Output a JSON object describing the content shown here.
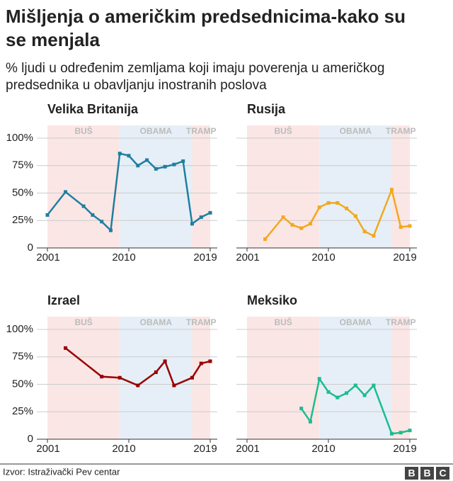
{
  "title_lines": [
    "Mišljenja o američkim predsednicima-kako su",
    "se menjala"
  ],
  "subtitle_lines": [
    "% ljudi u određenim zemljama koji imaju poverenja u američkog",
    "predsednika u obavljanju inostranih poslova"
  ],
  "source": "Izvor: Istraživački Pev centar",
  "logo": [
    "B",
    "B",
    "C"
  ],
  "chart_data": [
    {
      "type": "line",
      "title": "Velika Britanija",
      "x": [
        2001,
        2003,
        2005,
        2006,
        2007,
        2008,
        2009,
        2010,
        2011,
        2012,
        2013,
        2014,
        2015,
        2016,
        2017,
        2018,
        2019
      ],
      "series": [
        {
          "name": "Velika Britanija",
          "color": "#1f7fa0",
          "values": [
            30,
            51,
            38,
            30,
            24,
            16,
            86,
            84,
            75,
            80,
            72,
            74,
            76,
            79,
            22,
            28,
            32
          ]
        }
      ],
      "periods": [
        {
          "label": "BUŠ",
          "start": 2001,
          "end": 2009,
          "color": "#fbe6e6"
        },
        {
          "label": "OBAMA",
          "start": 2009,
          "end": 2017,
          "color": "#e6eff7"
        },
        {
          "label": "TRAMP",
          "start": 2017,
          "end": 2019,
          "color": "#fbe6e6"
        }
      ],
      "xlim": [
        2001,
        2019
      ],
      "xticks": [
        2001,
        2010,
        2019
      ],
      "ylim": [
        0,
        100
      ],
      "yticks": [
        {
          "value": 0,
          "label": "0"
        },
        {
          "value": 25,
          "label": "25%"
        },
        {
          "value": 50,
          "label": "50%"
        },
        {
          "value": 75,
          "label": "75%"
        },
        {
          "value": 100,
          "label": "100%"
        }
      ],
      "grid": true
    },
    {
      "type": "line",
      "title": "Rusija",
      "x": [
        2003,
        2005,
        2006,
        2007,
        2008,
        2009,
        2010,
        2011,
        2012,
        2013,
        2014,
        2015,
        2017,
        2018,
        2019
      ],
      "series": [
        {
          "name": "Rusija",
          "color": "#f2a81d",
          "values": [
            8,
            28,
            21,
            18,
            22,
            37,
            41,
            41,
            36,
            29,
            15,
            11,
            53,
            19,
            20
          ]
        }
      ],
      "periods": [
        {
          "label": "BUŠ",
          "start": 2001,
          "end": 2009,
          "color": "#fbe6e6"
        },
        {
          "label": "OBAMA",
          "start": 2009,
          "end": 2017,
          "color": "#e6eff7"
        },
        {
          "label": "TRAMP",
          "start": 2017,
          "end": 2019,
          "color": "#fbe6e6"
        }
      ],
      "xlim": [
        2001,
        2019
      ],
      "xticks": [
        2001,
        2010,
        2019
      ],
      "ylim": [
        0,
        100
      ],
      "yticks": [
        0,
        25,
        50,
        75,
        100
      ],
      "grid": true
    },
    {
      "type": "line",
      "title": "Izrael",
      "x": [
        2003,
        2007,
        2009,
        2011,
        2013,
        2014,
        2015,
        2017,
        2018,
        2019
      ],
      "series": [
        {
          "name": "Izrael",
          "color": "#990000",
          "values": [
            83,
            57,
            56,
            49,
            61,
            71,
            49,
            56,
            69,
            71
          ]
        }
      ],
      "periods": [
        {
          "label": "BUŠ",
          "start": 2001,
          "end": 2009,
          "color": "#fbe6e6"
        },
        {
          "label": "OBAMA",
          "start": 2009,
          "end": 2017,
          "color": "#e6eff7"
        },
        {
          "label": "TRAMP",
          "start": 2017,
          "end": 2019,
          "color": "#fbe6e6"
        }
      ],
      "xlim": [
        2001,
        2019
      ],
      "xticks": [
        2001,
        2010,
        2019
      ],
      "ylim": [
        0,
        100
      ],
      "yticks": [
        {
          "value": 0,
          "label": "0"
        },
        {
          "value": 25,
          "label": "25%"
        },
        {
          "value": 50,
          "label": "50%"
        },
        {
          "value": 75,
          "label": "75%"
        },
        {
          "value": 100,
          "label": "100%"
        }
      ],
      "grid": true
    },
    {
      "type": "line",
      "title": "Meksiko",
      "x": [
        2007,
        2008,
        2009,
        2010,
        2011,
        2012,
        2013,
        2014,
        2015,
        2017,
        2018,
        2019
      ],
      "series": [
        {
          "name": "Meksiko",
          "color": "#1bbd8f",
          "values": [
            28,
            16,
            55,
            43,
            38,
            42,
            49,
            40,
            49,
            5,
            6,
            8
          ]
        }
      ],
      "periods": [
        {
          "label": "BUŠ",
          "start": 2001,
          "end": 2009,
          "color": "#fbe6e6"
        },
        {
          "label": "OBAMA",
          "start": 2009,
          "end": 2017,
          "color": "#e6eff7"
        },
        {
          "label": "TRAMP",
          "start": 2017,
          "end": 2019,
          "color": "#fbe6e6"
        }
      ],
      "xlim": [
        2001,
        2019
      ],
      "xticks": [
        2001,
        2010,
        2019
      ],
      "ylim": [
        0,
        100
      ],
      "yticks": [
        0,
        25,
        50,
        75,
        100
      ],
      "grid": true
    }
  ]
}
